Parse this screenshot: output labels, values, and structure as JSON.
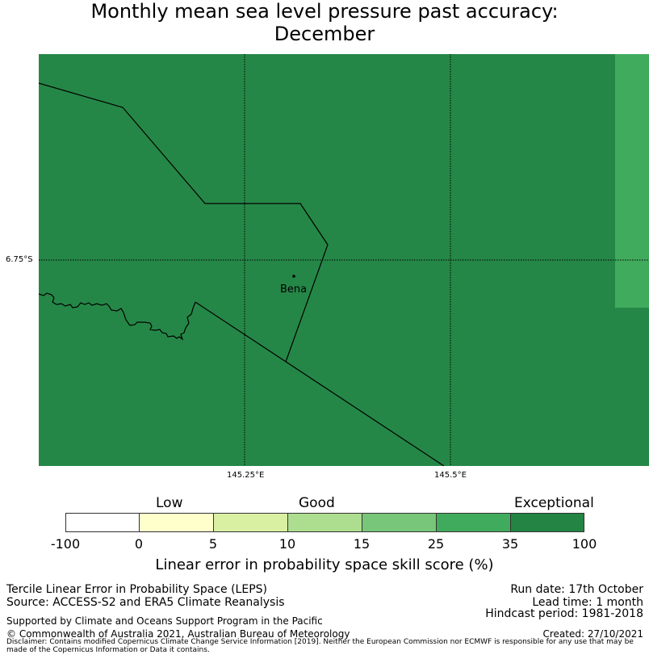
{
  "title": {
    "line1": "Monthly mean sea level pressure past accuracy:",
    "line2": "December"
  },
  "map": {
    "background_color": "#258747",
    "lat_tick": "6.75°S",
    "lon_ticks": [
      "145.25°E",
      "145.5°E"
    ],
    "town": "Bena"
  },
  "colorbar": {
    "category_labels": [
      "Low",
      "Good",
      "Exceptional"
    ],
    "ticks": [
      "-100",
      "0",
      "5",
      "10",
      "15",
      "25",
      "35",
      "100"
    ],
    "colors": [
      "#ffffff",
      "#ffffcc",
      "#d9f0a3",
      "#addd8e",
      "#78c679",
      "#41ab5d",
      "#238443"
    ],
    "label": "Linear error in probability space skill score (%)"
  },
  "footer": {
    "left1": "Tercile Linear Error in Probability Space (LEPS)",
    "left2": "Source: ACCESS-S2 and ERA5 Climate Reanalysis",
    "supported": "Supported by Climate and Oceans Support Program in the Pacific",
    "copyright": "© Commonwealth of Australia 2021, Australian Bureau of Meteorology",
    "run_date": "Run date: 17th October",
    "lead_time": "Lead time: 1 month",
    "hindcast": "Hindcast period: 1981-2018",
    "created": "Created: 27/10/2021",
    "disclaimer": "Disclaimer: Contains modified Copernicus Climate Change Service Information [2019]. Neither the European Commission nor ECMWF is responsible for any use that may be made of the Copernicus Information or Data it contains."
  }
}
